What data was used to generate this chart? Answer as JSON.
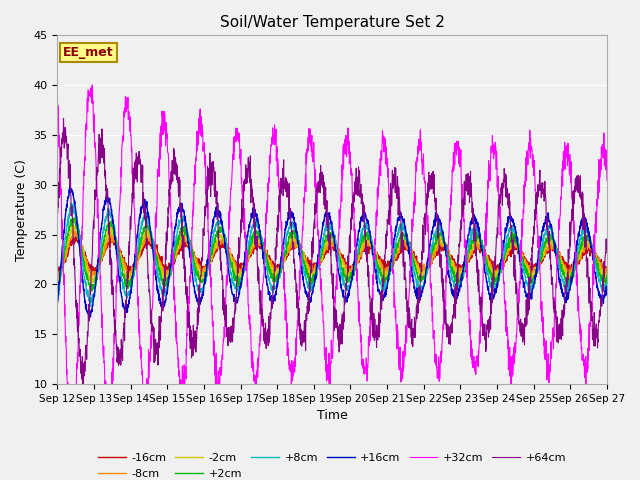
{
  "title": "Soil/Water Temperature Set 2",
  "xlabel": "Time",
  "ylabel": "Temperature (C)",
  "ylim": [
    10,
    45
  ],
  "annotation_label": "EE_met",
  "series": [
    {
      "label": "-16cm",
      "color": "#cc0000",
      "depth_amp": 1.0,
      "phase_shift": 0.0
    },
    {
      "label": "-8cm",
      "color": "#ff8c00",
      "depth_amp": 1.3,
      "phase_shift": 0.02
    },
    {
      "label": "-2cm",
      "color": "#cccc00",
      "depth_amp": 1.7,
      "phase_shift": 0.04
    },
    {
      "label": "+2cm",
      "color": "#00bb00",
      "depth_amp": 2.2,
      "phase_shift": 0.06
    },
    {
      "label": "+8cm",
      "color": "#00bbbb",
      "depth_amp": 3.0,
      "phase_shift": 0.09
    },
    {
      "label": "+16cm",
      "color": "#0000cc",
      "depth_amp": 4.0,
      "phase_shift": 0.13
    },
    {
      "label": "+32cm",
      "color": "#ff00ff",
      "depth_amp": 11.0,
      "phase_shift": -0.4
    },
    {
      "label": "+64cm",
      "color": "#880088",
      "depth_amp": 7.5,
      "phase_shift": -0.7
    }
  ],
  "xtick_labels": [
    "Sep 12",
    "Sep 13",
    "Sep 14",
    "Sep 15",
    "Sep 16",
    "Sep 17",
    "Sep 18",
    "Sep 19",
    "Sep 20",
    "Sep 21",
    "Sep 22",
    "Sep 23",
    "Sep 24",
    "Sep 25",
    "Sep 26",
    "Sep 27"
  ],
  "ytick_positions": [
    10,
    15,
    20,
    25,
    30,
    35,
    40,
    45
  ]
}
